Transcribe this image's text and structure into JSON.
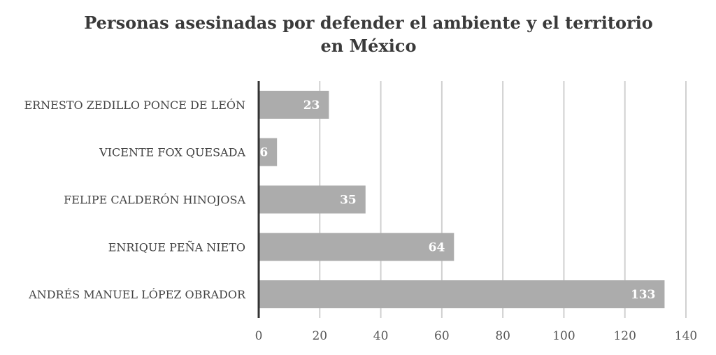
{
  "chart_data": {
    "type": "bar",
    "orientation": "horizontal",
    "title_lines": [
      "Personas asesinadas por defender el ambiente y el territorio",
      "en México"
    ],
    "categories": [
      "ERNESTO ZEDILLO PONCE DE LEÓN",
      "VICENTE FOX QUESADA",
      "FELIPE CALDERÓN HINOJOSA",
      "ENRIQUE PEÑA NIETO",
      "ANDRÉS MANUEL LÓPEZ OBRADOR"
    ],
    "values": [
      23,
      6,
      35,
      64,
      133
    ],
    "xlim": [
      0,
      140
    ],
    "x_ticks": [
      0,
      20,
      40,
      60,
      80,
      100,
      120,
      140
    ],
    "grid": true,
    "legend": "none",
    "colors": {
      "bar": "#acacac",
      "grid": "#d0d0d0",
      "axis": "#333333",
      "data_label": "#ffffff"
    }
  }
}
